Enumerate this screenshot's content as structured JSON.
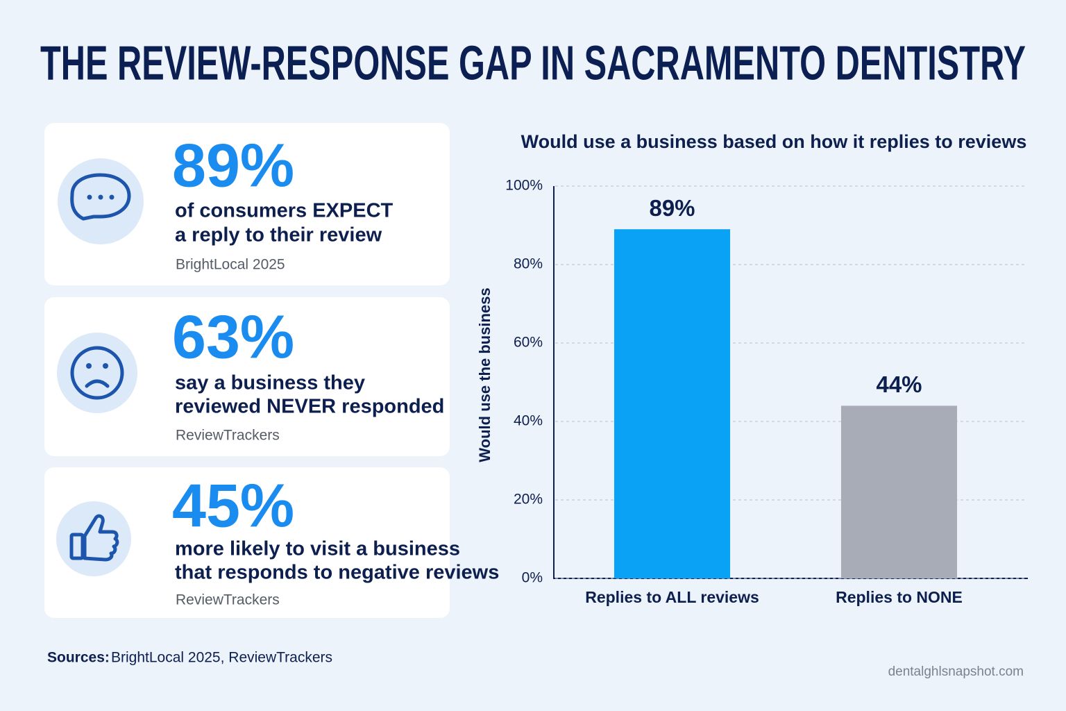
{
  "title": "THE REVIEW-RESPONSE GAP IN SACRAMENTO DENTISTRY",
  "cards": [
    {
      "stat": "89%",
      "lines": [
        "of consumers EXPECT",
        "a reply to their review"
      ],
      "source": "BrightLocal 2025"
    },
    {
      "stat": "63%",
      "lines": [
        "say a business they",
        "reviewed NEVER responded"
      ],
      "source": "ReviewTrackers"
    },
    {
      "stat": "45%",
      "lines": [
        "more likely to visit a business",
        "that responds to negative reviews"
      ],
      "source": "ReviewTrackers"
    }
  ],
  "chart_data": {
    "type": "bar",
    "title": "Would use a business based on how it replies to reviews",
    "y_label": "Would use the business",
    "categories": [
      "Replies to ALL reviews",
      "Replies to NONE"
    ],
    "values": [
      89,
      44
    ],
    "value_labels": [
      "89%",
      "44%"
    ],
    "colors": [
      "#0aa2f5",
      "#a7acb6"
    ],
    "ylim": [
      0,
      100
    ],
    "yticks": [
      {
        "value": 0,
        "label": "0%"
      },
      {
        "value": 20,
        "label": "20%"
      },
      {
        "value": 40,
        "label": "40%"
      },
      {
        "value": 60,
        "label": "60%"
      },
      {
        "value": 80,
        "label": "80%"
      },
      {
        "value": 100,
        "label": "100%"
      }
    ],
    "grid": true
  },
  "sources": {
    "label": "Sources:",
    "text": "BrightLocal 2025, ReviewTrackers"
  },
  "footer": "dentalghlsnapshot.com"
}
